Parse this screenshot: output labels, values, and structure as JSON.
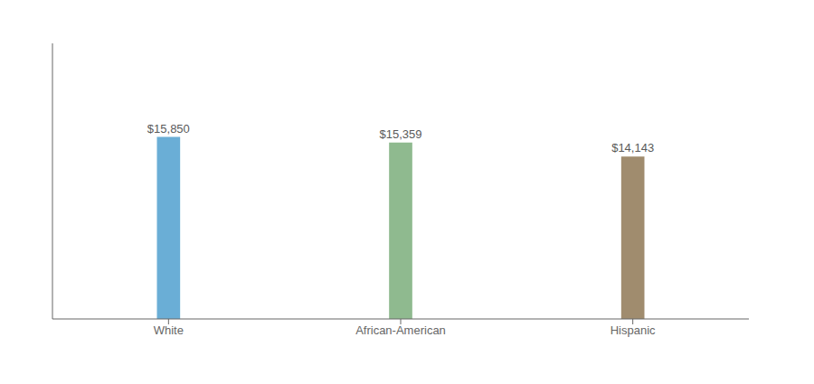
{
  "chart_data": {
    "type": "bar",
    "categories": [
      "White",
      "African-American",
      "Hispanic"
    ],
    "values": [
      15850,
      15359,
      14143
    ],
    "value_labels": [
      "$15,850",
      "$15,359",
      "$14,143"
    ],
    "colors": [
      "#6aaed6",
      "#8fba8f",
      "#a08c6e"
    ],
    "ylim": [
      0,
      24000
    ],
    "yticks": [],
    "tick_labels": "x",
    "data_labels": true
  }
}
